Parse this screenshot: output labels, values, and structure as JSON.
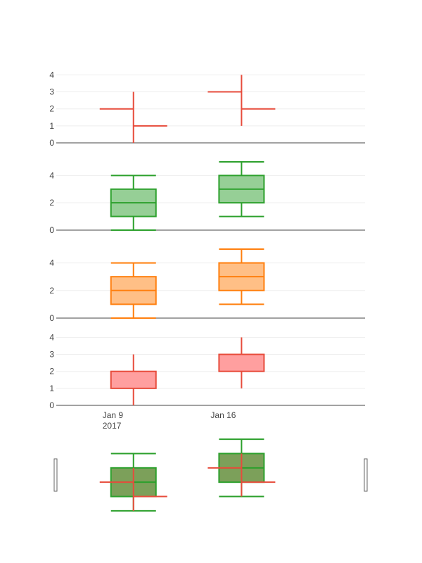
{
  "chart_data": {
    "type": "ohlc-candlestick-box",
    "grid": true,
    "x_ticks": [
      {
        "date": "2017-01-09",
        "label": "Jan 9",
        "sublabel": "2017"
      },
      {
        "date": "2017-01-16",
        "label": "Jan 16",
        "sublabel": ""
      }
    ],
    "x_range": [
      "2017-01-04",
      "2017-01-24"
    ],
    "panels": [
      {
        "kind": "ohlc",
        "color": "#e74c3c",
        "ylim": [
          0,
          4.1
        ],
        "yticks": [
          0,
          1,
          2,
          3,
          4
        ],
        "points": [
          {
            "date": "2017-01-09",
            "open": 2,
            "high": 3,
            "low": 0,
            "close": 1
          },
          {
            "date": "2017-01-16",
            "open": 3,
            "high": 4,
            "low": 1,
            "close": 2
          }
        ]
      },
      {
        "kind": "box",
        "color": "#2ca02c",
        "fill": "#96cf96",
        "ylim": [
          0,
          5.1
        ],
        "yticks": [
          0,
          2,
          4
        ],
        "points": [
          {
            "date": "2017-01-09",
            "min": 0,
            "q1": 1,
            "median": 2,
            "q3": 3,
            "max": 4
          },
          {
            "date": "2017-01-16",
            "min": 1,
            "q1": 2,
            "median": 3,
            "q3": 4,
            "max": 5
          }
        ]
      },
      {
        "kind": "box",
        "color": "#ff7f0e",
        "fill": "#ffbf86",
        "ylim": [
          0,
          5.1
        ],
        "yticks": [
          0,
          2,
          4
        ],
        "points": [
          {
            "date": "2017-01-09",
            "min": 0,
            "q1": 1,
            "median": 2,
            "q3": 3,
            "max": 4
          },
          {
            "date": "2017-01-16",
            "min": 1,
            "q1": 2,
            "median": 3,
            "q3": 4,
            "max": 5
          }
        ]
      },
      {
        "kind": "candlestick",
        "color": "#e74c3c",
        "fill": "#ff9f9f",
        "ylim": [
          0,
          4.1
        ],
        "yticks": [
          0,
          1,
          2,
          3,
          4
        ],
        "points": [
          {
            "date": "2017-01-09",
            "low": 0,
            "open": 1,
            "close": 2,
            "high": 3
          },
          {
            "date": "2017-01-16",
            "low": 1,
            "open": 2,
            "close": 3,
            "high": 4
          }
        ]
      }
    ],
    "rangeslider": {
      "ylim": [
        -0.2,
        5.2
      ],
      "box_color": "#2ca02c",
      "box_fill": "#7ca05a",
      "ohlc_color": "#e74c3c"
    }
  }
}
